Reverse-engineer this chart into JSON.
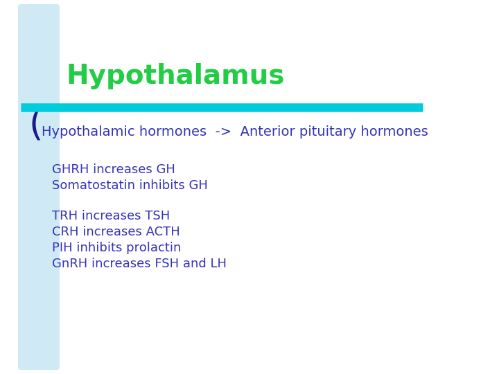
{
  "title": "Hypothalamus",
  "title_color": "#22cc44",
  "title_fontsize": 28,
  "subtitle": "Hypothalamic hormones  ->  Anterior pituitary hormones",
  "subtitle_color": "#3333bb",
  "subtitle_fontsize": 14,
  "body_lines": [
    "GHRH increases GH",
    "Somatostatin inhibits GH",
    "",
    "TRH increases TSH",
    "CRH increases ACTH",
    "PIH inhibits prolactin",
    "GnRH increases FSH and LH"
  ],
  "body_color": "#3333bb",
  "body_fontsize": 13,
  "background_color": "#ffffff",
  "left_bar_color": "#b8dff0",
  "divider_color": "#00ccdd",
  "bracket_color": "#1a1a8c"
}
